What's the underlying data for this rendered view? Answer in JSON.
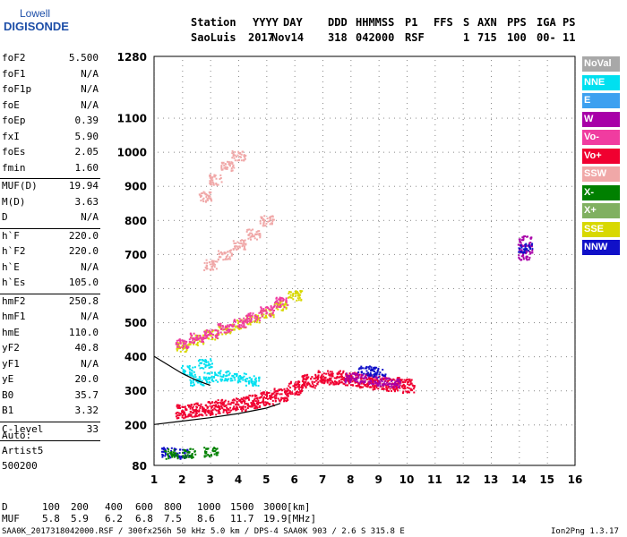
{
  "logo": {
    "line1": "Lowell",
    "line2": "DIGISONDE"
  },
  "header": {
    "row1": [
      "Station",
      "YYYY",
      "DAY",
      "DDD",
      "HHMMSS",
      "P1",
      "FFS",
      "S",
      "AXN",
      "PPS",
      "IGA",
      "PS"
    ],
    "row2": [
      "SaoLuis",
      "2017",
      "Nov14",
      "318",
      "042000",
      "RSF",
      "1",
      "715",
      "100",
      "00-",
      "11"
    ]
  },
  "params": [
    {
      "name": "foF2",
      "value": "5.500"
    },
    {
      "name": "foF1",
      "value": "N/A"
    },
    {
      "name": "foF1p",
      "value": "N/A"
    },
    {
      "name": "foE",
      "value": "N/A"
    },
    {
      "name": "foEp",
      "value": "0.39"
    },
    {
      "name": "fxI",
      "value": "5.90"
    },
    {
      "name": "foEs",
      "value": "2.05"
    },
    {
      "name": "fmin",
      "value": "1.60"
    },
    {
      "name": "MUF(D)",
      "value": "19.94"
    },
    {
      "name": "M(D)",
      "value": "3.63"
    },
    {
      "name": "D",
      "value": "N/A"
    },
    {
      "name": "h`F",
      "value": "220.0"
    },
    {
      "name": "h`F2",
      "value": "220.0"
    },
    {
      "name": "h`E",
      "value": "N/A"
    },
    {
      "name": "h`Es",
      "value": "105.0"
    },
    {
      "name": "hmF2",
      "value": "250.8"
    },
    {
      "name": "hmF1",
      "value": "N/A"
    },
    {
      "name": "hmE",
      "value": "110.0"
    },
    {
      "name": "yF2",
      "value": "40.8"
    },
    {
      "name": "yF1",
      "value": "N/A"
    },
    {
      "name": "yE",
      "value": "20.0"
    },
    {
      "name": "B0",
      "value": "35.7"
    },
    {
      "name": "B1",
      "value": "3.32"
    },
    {
      "name": "C-level",
      "value": "33"
    }
  ],
  "autoscale": {
    "line1": "Auto:",
    "line2": "Artist5",
    "line3": "500200"
  },
  "legend": [
    {
      "label": "NoVal",
      "color": "#a8a8a8"
    },
    {
      "label": "NNE",
      "color": "#00e0f0"
    },
    {
      "label": "E",
      "color": "#3ca0f0"
    },
    {
      "label": "W",
      "color": "#a800a8"
    },
    {
      "label": "Vo-",
      "color": "#f03ca0"
    },
    {
      "label": "Vo+",
      "color": "#f00030"
    },
    {
      "label": "SSW",
      "color": "#f0a8a8"
    },
    {
      "label": "X-",
      "color": "#008000"
    },
    {
      "label": "X+",
      "color": "#80b060"
    },
    {
      "label": "SSE",
      "color": "#d8d800"
    },
    {
      "label": "NNW",
      "color": "#1010c8"
    }
  ],
  "chart_data": {
    "type": "scatter",
    "x_range": [
      1,
      16
    ],
    "y_range": [
      80,
      1280
    ],
    "x_ticks": [
      "1",
      "2",
      "3",
      "4",
      "5",
      "6",
      "7",
      "8",
      "9",
      "10",
      "11",
      "12",
      "13",
      "14",
      "15",
      "16"
    ],
    "y_ticks": [
      "1280",
      "1100",
      "1000",
      "900",
      "800",
      "700",
      "600",
      "500",
      "400",
      "300",
      "200",
      "80"
    ],
    "y_tick_values": [
      1280,
      1100,
      1000,
      900,
      800,
      700,
      600,
      500,
      400,
      300,
      200,
      80
    ],
    "grid": true,
    "traces": [
      {
        "name": "Vo+",
        "points": [
          [
            2.0,
            240
          ],
          [
            2.5,
            245
          ],
          [
            3.0,
            250
          ],
          [
            3.5,
            255
          ],
          [
            4.0,
            262
          ],
          [
            4.5,
            270
          ],
          [
            5.0,
            278
          ],
          [
            5.5,
            290
          ],
          [
            6.0,
            310
          ],
          [
            6.5,
            330
          ],
          [
            7.0,
            340
          ],
          [
            7.5,
            340
          ],
          [
            8.0,
            335
          ],
          [
            8.5,
            330
          ],
          [
            9.0,
            325
          ],
          [
            9.5,
            320
          ],
          [
            10.0,
            315
          ]
        ]
      },
      {
        "name": "SSE",
        "points": [
          [
            2.0,
            430
          ],
          [
            2.5,
            450
          ],
          [
            3.0,
            465
          ],
          [
            3.5,
            480
          ],
          [
            4.0,
            495
          ],
          [
            4.5,
            510
          ],
          [
            5.0,
            530
          ],
          [
            5.5,
            550
          ],
          [
            6.0,
            580
          ]
        ]
      },
      {
        "name": "Vo-",
        "points": [
          [
            2.0,
            440
          ],
          [
            2.5,
            455
          ],
          [
            3.0,
            470
          ],
          [
            3.5,
            485
          ],
          [
            4.0,
            500
          ],
          [
            4.5,
            515
          ],
          [
            5.0,
            535
          ],
          [
            5.5,
            560
          ]
        ]
      },
      {
        "name": "SSW",
        "points": [
          [
            3.0,
            670
          ],
          [
            3.5,
            700
          ],
          [
            4.0,
            730
          ],
          [
            4.5,
            760
          ],
          [
            5.0,
            800
          ],
          [
            2.8,
            870
          ],
          [
            3.2,
            920
          ],
          [
            3.6,
            960
          ],
          [
            4.0,
            990
          ]
        ]
      },
      {
        "name": "NNE",
        "points": [
          [
            2.5,
            330
          ],
          [
            3.0,
            340
          ],
          [
            3.5,
            345
          ],
          [
            4.0,
            340
          ],
          [
            4.5,
            330
          ],
          [
            2.2,
            360
          ],
          [
            2.8,
            380
          ]
        ]
      },
      {
        "name": "W",
        "points": [
          [
            8.0,
            340
          ],
          [
            8.5,
            335
          ],
          [
            9.0,
            330
          ],
          [
            9.5,
            325
          ],
          [
            14.2,
            700
          ],
          [
            14.2,
            740
          ]
        ]
      },
      {
        "name": "NNW",
        "points": [
          [
            1.5,
            120
          ],
          [
            2.0,
            115
          ],
          [
            8.5,
            360
          ],
          [
            9.0,
            355
          ],
          [
            14.2,
            720
          ]
        ]
      },
      {
        "name": "X-",
        "points": [
          [
            1.6,
            115
          ],
          [
            2.2,
            118
          ],
          [
            3.0,
            120
          ]
        ]
      }
    ],
    "trace_curve": [
      [
        1.0,
        200
      ],
      [
        2.0,
        210
      ],
      [
        3.0,
        220
      ],
      [
        4.0,
        232
      ],
      [
        5.0,
        248
      ],
      [
        5.5,
        262
      ]
    ],
    "trace_curve2": [
      [
        1.0,
        400
      ],
      [
        1.5,
        375
      ],
      [
        2.0,
        350
      ],
      [
        2.5,
        330
      ],
      [
        3.0,
        315
      ]
    ]
  },
  "bottom": {
    "d_label": "D",
    "d_values": [
      "100",
      "200",
      "400",
      "600",
      "800",
      "1000",
      "1500",
      "3000"
    ],
    "d_unit": "[km]",
    "muf_label": "MUF",
    "muf_values": [
      "5.8",
      "5.9",
      "6.2",
      "6.8",
      "7.5",
      "8.6",
      "11.7",
      "19.9"
    ],
    "muf_unit": "[MHz]"
  },
  "footer": {
    "left": "SAA0K_2017318042000.RSF / 300fx256h 50 kHz 5.0 km / DPS-4 SAA0K 903 / 2.6 S 315.8 E",
    "right": "Ion2Png 1.3.17"
  }
}
